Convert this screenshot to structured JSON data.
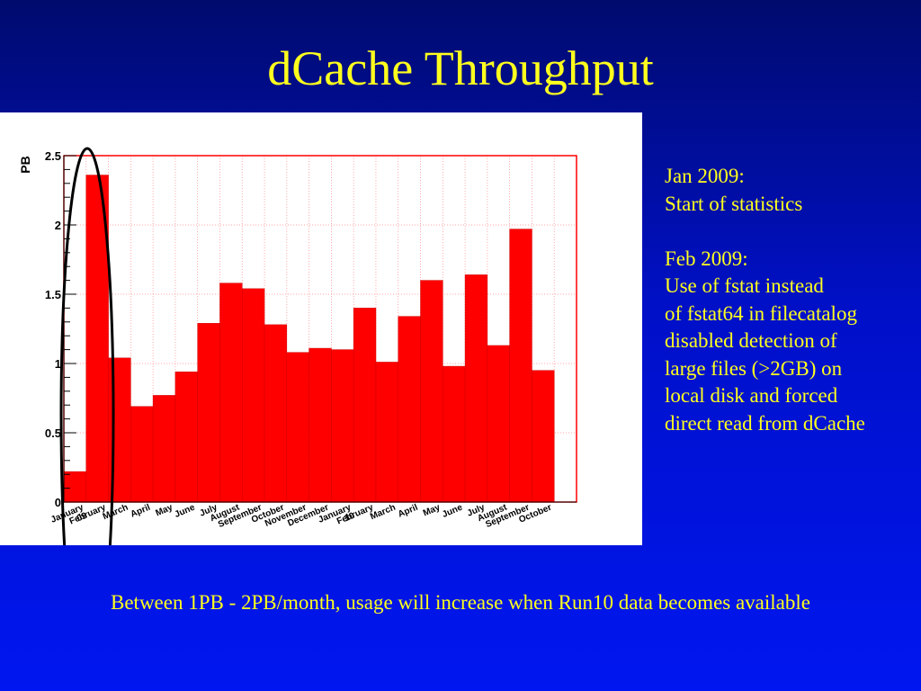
{
  "slide": {
    "title": "dCache Throughput",
    "footer": "Between 1PB - 2PB/month, usage will increase when Run10 data becomes available"
  },
  "notes": {
    "lines": [
      "Jan 2009:",
      "Start of statistics",
      "",
      "Feb 2009:",
      "Use of fstat instead",
      "of fstat64 in filecatalog",
      "disabled detection of",
      "large files (>2GB) on",
      "local disk and forced",
      "direct read from dCache"
    ]
  },
  "colors": {
    "background": "#0010c8",
    "text": "#ffff1e",
    "bar": "#ff0000",
    "grid": "#ff8888",
    "highlight_ellipse": "#000000"
  },
  "chart_data": {
    "type": "bar",
    "title": "",
    "xlabel": "",
    "ylabel": "PB",
    "ylim": [
      0,
      2.5
    ],
    "yticks": [
      "0",
      "0.5",
      "1",
      "1.5",
      "2",
      "2.5"
    ],
    "grid": true,
    "categories": [
      "January 09",
      "February",
      "March",
      "April",
      "May",
      "June",
      "July",
      "August",
      "September",
      "October",
      "November",
      "December",
      "January 10",
      "February",
      "March",
      "April",
      "May",
      "June",
      "July",
      "August",
      "September",
      "October"
    ],
    "values": [
      0.22,
      2.36,
      1.04,
      0.69,
      0.77,
      0.94,
      1.29,
      1.58,
      1.54,
      1.28,
      1.08,
      1.11,
      1.1,
      1.4,
      1.01,
      1.34,
      1.6,
      0.98,
      1.64,
      1.13,
      1.97,
      0.95
    ],
    "annotations": [
      "ellipse around January 09 and February bars"
    ]
  }
}
